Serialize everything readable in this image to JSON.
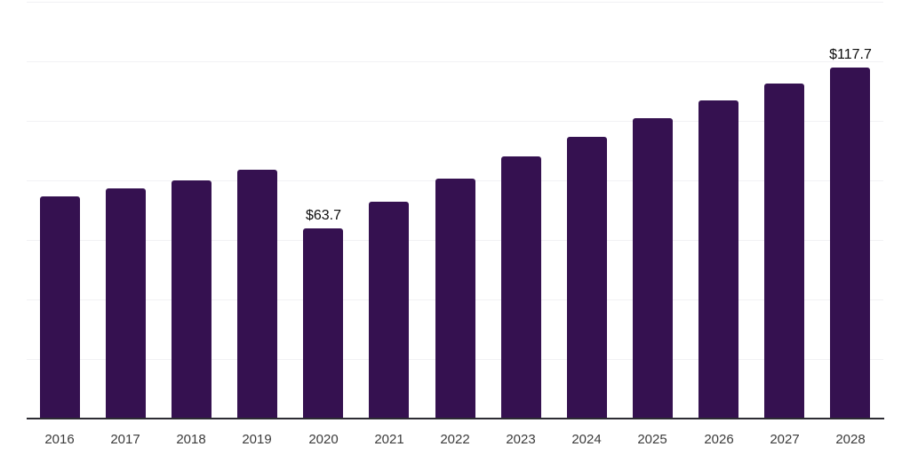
{
  "chart_data": {
    "type": "bar",
    "title": "",
    "xlabel": "",
    "ylabel": "",
    "categories": [
      "2016",
      "2017",
      "2018",
      "2019",
      "2020",
      "2021",
      "2022",
      "2023",
      "2024",
      "2025",
      "2026",
      "2027",
      "2028"
    ],
    "values": [
      74.4,
      77.0,
      79.7,
      83.3,
      63.7,
      72.6,
      80.2,
      87.8,
      94.5,
      100.6,
      106.6,
      112.2,
      117.7
    ],
    "data_labels": [
      {
        "index": 4,
        "text": "$63.7"
      },
      {
        "index": 12,
        "text": "$117.7"
      }
    ],
    "ylim": [
      0,
      140
    ],
    "grid_step": 20,
    "grid": "horizontal",
    "legend_position": "none",
    "colors": {
      "bar": "#351150",
      "axis_line": "#2d2c33",
      "gridline": "#f1f1f4",
      "tick_label": "#3b3b3b",
      "data_label": "#0d0d0d",
      "background": "#ffffff"
    }
  }
}
